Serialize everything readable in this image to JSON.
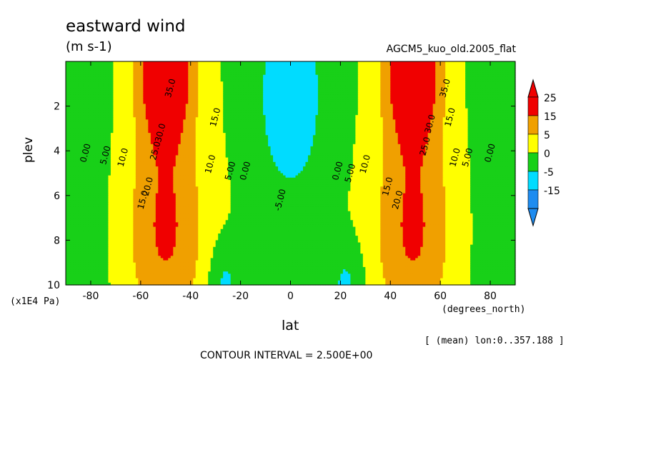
{
  "chart_data": {
    "type": "heatmap",
    "title": "eastward wind",
    "units": "(m s-1)",
    "run_label": "AGCM5_kuo_old.2005_flat",
    "xlabel": "lat",
    "x_unit_label": "(degrees_north)",
    "ylabel": "plev",
    "y_unit_label": "(x1E4 Pa)",
    "averaging_note": "[ (mean) lon:0..357.188 ]",
    "contour_interval_text": "CONTOUR INTERVAL = 2.500E+00",
    "xlim": [
      -90,
      90
    ],
    "ylim": [
      10,
      0
    ],
    "x_ticks": [
      "-80",
      "-60",
      "-40",
      "-20",
      "0",
      "20",
      "40",
      "60",
      "80"
    ],
    "y_ticks": [
      "2",
      "4",
      "6",
      "8",
      "10"
    ],
    "colorbar": {
      "levels": [
        -15,
        -5,
        0,
        5,
        15,
        25
      ],
      "tick_labels": [
        "25",
        "15",
        "5",
        "0",
        "-5",
        "-15"
      ],
      "colors": [
        "#1e8cf0",
        "#00dcff",
        "#18d018",
        "#ffff00",
        "#f0a000",
        "#f00000"
      ]
    },
    "contour_labels": [
      {
        "text": "35.0",
        "lat": -48,
        "p": 1.2
      },
      {
        "text": "30.0",
        "lat": -52,
        "p": 3.2
      },
      {
        "text": "25.0",
        "lat": -54,
        "p": 4.0
      },
      {
        "text": "20.0",
        "lat": -57,
        "p": 5.6
      },
      {
        "text": "15.0",
        "lat": -59,
        "p": 6.2
      },
      {
        "text": "10.0",
        "lat": -67,
        "p": 4.3
      },
      {
        "text": "5.00",
        "lat": -74,
        "p": 4.2
      },
      {
        "text": "0.00",
        "lat": -82,
        "p": 4.1
      },
      {
        "text": "15.0",
        "lat": -30,
        "p": 2.5
      },
      {
        "text": "10.0",
        "lat": -32,
        "p": 4.6
      },
      {
        "text": "5.00",
        "lat": -24,
        "p": 4.9
      },
      {
        "text": "0.00",
        "lat": -18,
        "p": 4.9
      },
      {
        "text": "-5.00",
        "lat": -4,
        "p": 6.2
      },
      {
        "text": "0.00",
        "lat": 19,
        "p": 4.9
      },
      {
        "text": "5.00",
        "lat": 24,
        "p": 5.0
      },
      {
        "text": "10.0",
        "lat": 30,
        "p": 4.6
      },
      {
        "text": "15.0",
        "lat": 39,
        "p": 5.6
      },
      {
        "text": "20.0",
        "lat": 43,
        "p": 6.2
      },
      {
        "text": "25.0",
        "lat": 54,
        "p": 3.8
      },
      {
        "text": "30.0",
        "lat": 56,
        "p": 2.8
      },
      {
        "text": "35.0",
        "lat": 62,
        "p": 1.2
      },
      {
        "text": "15.0",
        "lat": 64,
        "p": 2.5
      },
      {
        "text": "10.0",
        "lat": 66,
        "p": 4.3
      },
      {
        "text": "5.00",
        "lat": 71,
        "p": 4.3
      },
      {
        "text": "0.00",
        "lat": 80,
        "p": 4.1
      }
    ]
  }
}
